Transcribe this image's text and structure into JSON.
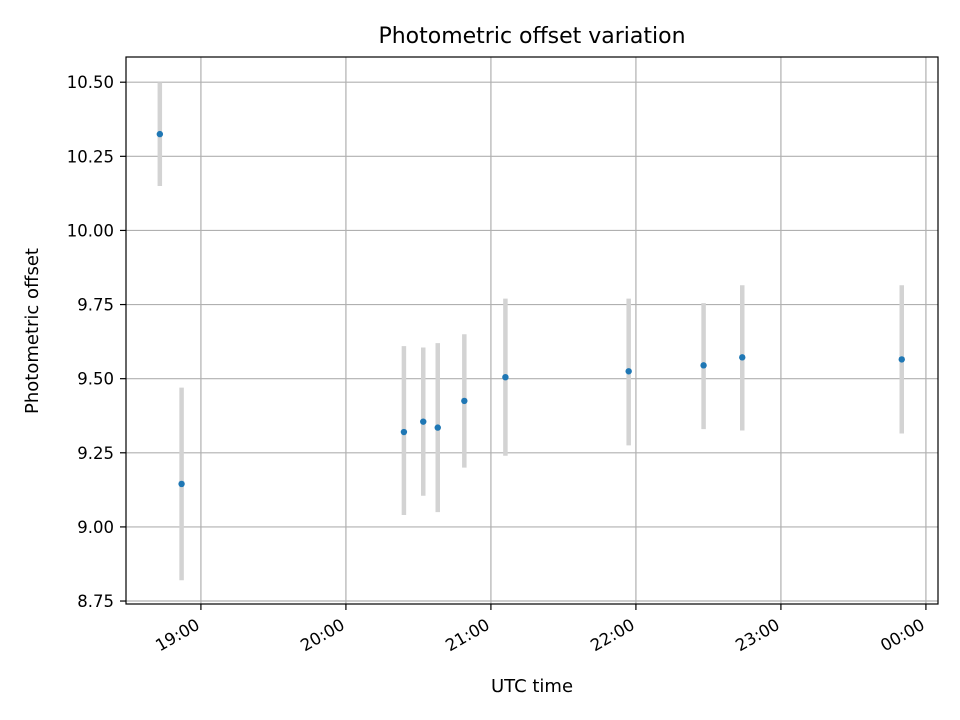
{
  "chart_data": {
    "type": "scatter",
    "title": "Photometric offset variation",
    "xlabel": "UTC time",
    "ylabel": "Photometric offset",
    "xlim": [
      "18:29",
      "00:05"
    ],
    "ylim": [
      8.74,
      10.585
    ],
    "grid": true,
    "colors": {
      "points": "#1f77b4",
      "errorbars": "#d3d3d3",
      "grid": "#b0b0b0"
    },
    "x_ticks": [
      {
        "time": "19:00",
        "label": "19:00"
      },
      {
        "time": "20:00",
        "label": "20:00"
      },
      {
        "time": "21:00",
        "label": "21:00"
      },
      {
        "time": "22:00",
        "label": "22:00"
      },
      {
        "time": "23:00",
        "label": "23:00"
      },
      {
        "time": "00:00",
        "label": "00:00"
      }
    ],
    "y_ticks": [
      {
        "value": 8.75,
        "label": "8.75"
      },
      {
        "value": 9.0,
        "label": "9.00"
      },
      {
        "value": 9.25,
        "label": "9.25"
      },
      {
        "value": 9.5,
        "label": "9.50"
      },
      {
        "value": 9.75,
        "label": "9.75"
      },
      {
        "value": 10.0,
        "label": "10.00"
      },
      {
        "value": 10.25,
        "label": "10.25"
      },
      {
        "value": 10.5,
        "label": "10.50"
      }
    ],
    "points": [
      {
        "time": "18:43",
        "y": 10.325,
        "yerr_low": 10.15,
        "yerr_high": 10.5
      },
      {
        "time": "18:52",
        "y": 9.145,
        "yerr_low": 8.82,
        "yerr_high": 9.47
      },
      {
        "time": "20:24",
        "y": 9.32,
        "yerr_low": 9.04,
        "yerr_high": 9.61
      },
      {
        "time": "20:32",
        "y": 9.355,
        "yerr_low": 9.105,
        "yerr_high": 9.605
      },
      {
        "time": "20:38",
        "y": 9.335,
        "yerr_low": 9.05,
        "yerr_high": 9.62
      },
      {
        "time": "20:49",
        "y": 9.425,
        "yerr_low": 9.2,
        "yerr_high": 9.65
      },
      {
        "time": "21:06",
        "y": 9.505,
        "yerr_low": 9.24,
        "yerr_high": 9.77
      },
      {
        "time": "21:57",
        "y": 9.525,
        "yerr_low": 9.275,
        "yerr_high": 9.77
      },
      {
        "time": "22:28",
        "y": 9.545,
        "yerr_low": 9.33,
        "yerr_high": 9.755
      },
      {
        "time": "22:44",
        "y": 9.572,
        "yerr_low": 9.325,
        "yerr_high": 9.815
      },
      {
        "time": "23:50",
        "y": 9.565,
        "yerr_low": 9.315,
        "yerr_high": 9.815
      }
    ]
  }
}
